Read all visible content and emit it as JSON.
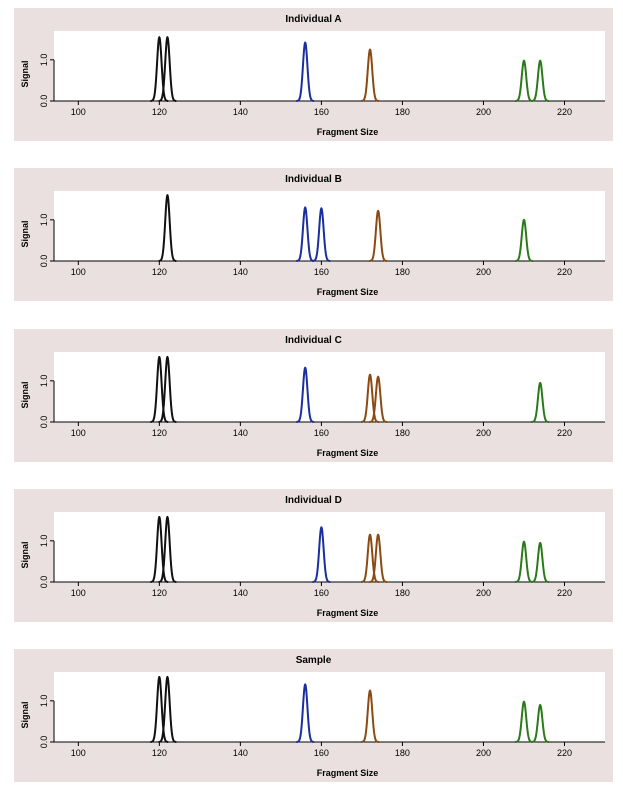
{
  "chart_data": [
    {
      "type": "line",
      "title": "Individual A",
      "xlabel": "Fragment Size",
      "ylabel": "Signal",
      "xlim": [
        94,
        230
      ],
      "xticks": [
        100,
        120,
        140,
        160,
        180,
        200,
        220
      ],
      "yticks": [
        0.0,
        1.0
      ],
      "ytick_labels": [
        "0.0",
        "1.0"
      ],
      "peaks": [
        {
          "x": 120,
          "height": 1.55,
          "color": "#111111"
        },
        {
          "x": 122,
          "height": 1.55,
          "color": "#111111"
        },
        {
          "x": 156,
          "height": 1.42,
          "color": "#1a2ea0"
        },
        {
          "x": 172,
          "height": 1.25,
          "color": "#8b4a12"
        },
        {
          "x": 210,
          "height": 0.98,
          "color": "#2a7a1a"
        },
        {
          "x": 214,
          "height": 0.98,
          "color": "#2a7a1a"
        }
      ]
    },
    {
      "type": "line",
      "title": "Individual B",
      "xlabel": "Fragment Size",
      "ylabel": "Signal",
      "xlim": [
        94,
        230
      ],
      "xticks": [
        100,
        120,
        140,
        160,
        180,
        200,
        220
      ],
      "yticks": [
        0.0,
        1.0
      ],
      "ytick_labels": [
        "0.0",
        "1.0"
      ],
      "peaks": [
        {
          "x": 122,
          "height": 1.6,
          "color": "#111111"
        },
        {
          "x": 156,
          "height": 1.3,
          "color": "#1a2ea0"
        },
        {
          "x": 160,
          "height": 1.28,
          "color": "#1a2ea0"
        },
        {
          "x": 174,
          "height": 1.22,
          "color": "#8b4a12"
        },
        {
          "x": 210,
          "height": 1.0,
          "color": "#2a7a1a"
        }
      ]
    },
    {
      "type": "line",
      "title": "Individual C",
      "xlabel": "Fragment Size",
      "ylabel": "Signal",
      "xlim": [
        94,
        230
      ],
      "xticks": [
        100,
        120,
        140,
        160,
        180,
        200,
        220
      ],
      "yticks": [
        0.0,
        1.0
      ],
      "ytick_labels": [
        "0.0",
        "1.0"
      ],
      "peaks": [
        {
          "x": 120,
          "height": 1.58,
          "color": "#111111"
        },
        {
          "x": 122,
          "height": 1.58,
          "color": "#111111"
        },
        {
          "x": 156,
          "height": 1.32,
          "color": "#1a2ea0"
        },
        {
          "x": 172,
          "height": 1.15,
          "color": "#8b4a12"
        },
        {
          "x": 174,
          "height": 1.1,
          "color": "#8b4a12"
        },
        {
          "x": 214,
          "height": 0.95,
          "color": "#2a7a1a"
        }
      ]
    },
    {
      "type": "line",
      "title": "Individual D",
      "xlabel": "Fragment Size",
      "ylabel": "Signal",
      "xlim": [
        94,
        230
      ],
      "xticks": [
        100,
        120,
        140,
        160,
        180,
        200,
        220
      ],
      "yticks": [
        0.0,
        1.0
      ],
      "ytick_labels": [
        "0.0",
        "1.0"
      ],
      "peaks": [
        {
          "x": 120,
          "height": 1.58,
          "color": "#111111"
        },
        {
          "x": 122,
          "height": 1.58,
          "color": "#111111"
        },
        {
          "x": 160,
          "height": 1.33,
          "color": "#1a2ea0"
        },
        {
          "x": 172,
          "height": 1.15,
          "color": "#8b4a12"
        },
        {
          "x": 174,
          "height": 1.15,
          "color": "#8b4a12"
        },
        {
          "x": 210,
          "height": 0.98,
          "color": "#2a7a1a"
        },
        {
          "x": 214,
          "height": 0.95,
          "color": "#2a7a1a"
        }
      ]
    },
    {
      "type": "line",
      "title": "Sample",
      "xlabel": "Fragment Size",
      "ylabel": "Signal",
      "xlim": [
        94,
        230
      ],
      "xticks": [
        100,
        120,
        140,
        160,
        180,
        200,
        220
      ],
      "yticks": [
        0.0,
        1.0
      ],
      "ytick_labels": [
        "0.0",
        "1.0"
      ],
      "peaks": [
        {
          "x": 120,
          "height": 1.58,
          "color": "#111111"
        },
        {
          "x": 122,
          "height": 1.58,
          "color": "#111111"
        },
        {
          "x": 156,
          "height": 1.4,
          "color": "#1a2ea0"
        },
        {
          "x": 172,
          "height": 1.25,
          "color": "#8b4a12"
        },
        {
          "x": 210,
          "height": 0.98,
          "color": "#2a7a1a"
        },
        {
          "x": 214,
          "height": 0.9,
          "color": "#2a7a1a"
        }
      ]
    }
  ]
}
